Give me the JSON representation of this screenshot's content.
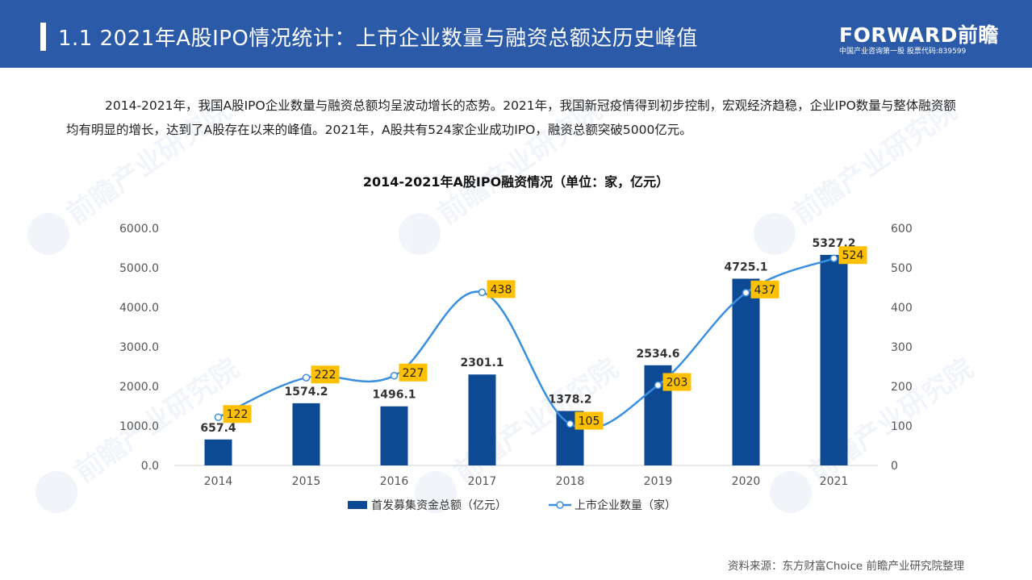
{
  "header": {
    "title": "1.1 2021年A股IPO情况统计：上市企业数量与融资总额达历史峰值",
    "logo_text": "FORWARD前瞻",
    "logo_subtitle": "中国产业咨询第一股 股票代码:839599"
  },
  "intro": {
    "text": "2014-2021年，我国A股IPO企业数量与融资总额均呈波动增长的态势。2021年，我国新冠疫情得到初步控制，宏观经济趋稳，企业IPO数量与整体融资额均有明显的增长，达到了A股存在以来的峰值。2021年，A股共有524家企业成功IPO，融资总额突破5000亿元。"
  },
  "watermark": {
    "text": "前瞻产业研究院"
  },
  "chart_data": {
    "type": "bar+line",
    "title": "2014-2021年A股IPO融资情况（单位：家，亿元）",
    "categories": [
      "2014",
      "2015",
      "2016",
      "2017",
      "2018",
      "2019",
      "2020",
      "2021"
    ],
    "series": [
      {
        "name": "首发募集资金总额（亿元）",
        "type": "bar",
        "axis": "left",
        "values": [
          657.4,
          1574.2,
          1496.1,
          2301.1,
          1378.2,
          2534.6,
          4725.1,
          5327.2
        ],
        "labels": [
          "657.4",
          "1574.2",
          "1496.1",
          "2301.1",
          "1378.2",
          "2534.6",
          "4725.1",
          "5327.2"
        ],
        "color": "#0e4a94"
      },
      {
        "name": "上市企业数量（家）",
        "type": "line",
        "axis": "right",
        "values": [
          122,
          222,
          227,
          438,
          105,
          203,
          437,
          524
        ],
        "labels": [
          "122",
          "222",
          "227",
          "438",
          "105",
          "203",
          "437",
          "524"
        ],
        "color": "#3b8fe0",
        "label_bg": "#ffc000"
      }
    ],
    "left_axis": {
      "ylim": [
        0,
        6000
      ],
      "ticks": [
        "0.0",
        "1000.0",
        "2000.0",
        "3000.0",
        "4000.0",
        "5000.0",
        "6000.0"
      ]
    },
    "right_axis": {
      "ylim": [
        0,
        600
      ],
      "ticks": [
        "0",
        "100",
        "200",
        "300",
        "400",
        "500",
        "600"
      ]
    },
    "grid": false,
    "legend_position": "bottom"
  },
  "source": {
    "text": "资料来源：东方财富Choice 前瞻产业研究院整理"
  }
}
